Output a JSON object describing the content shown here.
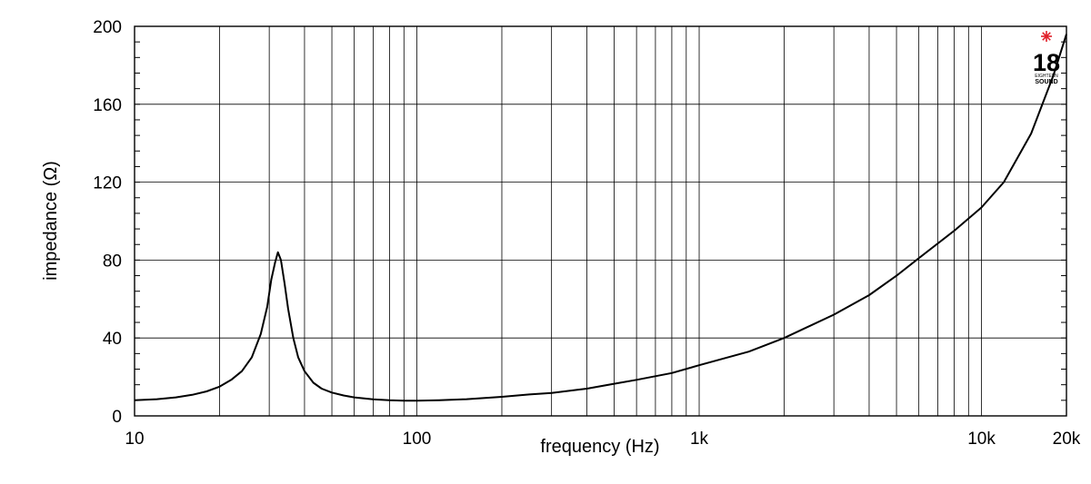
{
  "chart_data": {
    "type": "line",
    "title": "",
    "xlabel": "frequency (Hz)",
    "ylabel": "impedance (Ω)",
    "x_scale": "log",
    "xlim": [
      10,
      20000
    ],
    "ylim": [
      0,
      200
    ],
    "grid": true,
    "x_ticks": [
      {
        "value": 10,
        "label": "10"
      },
      {
        "value": 100,
        "label": "100"
      },
      {
        "value": 1000,
        "label": "1k"
      },
      {
        "value": 10000,
        "label": "10k"
      },
      {
        "value": 20000,
        "label": "20k"
      }
    ],
    "y_ticks": [
      {
        "value": 0,
        "label": "0"
      },
      {
        "value": 40,
        "label": "40"
      },
      {
        "value": 80,
        "label": "80"
      },
      {
        "value": 120,
        "label": "120"
      },
      {
        "value": 160,
        "label": "160"
      },
      {
        "value": 200,
        "label": "200"
      }
    ],
    "series": [
      {
        "color": "#000000",
        "points": [
          [
            10,
            8
          ],
          [
            12,
            8.6
          ],
          [
            14,
            9.5
          ],
          [
            16,
            10.8
          ],
          [
            18,
            12.6
          ],
          [
            20,
            15
          ],
          [
            22,
            18.5
          ],
          [
            24,
            23
          ],
          [
            26,
            30
          ],
          [
            28,
            42
          ],
          [
            29.5,
            56
          ],
          [
            30.5,
            70
          ],
          [
            31.5,
            79
          ],
          [
            32.2,
            84
          ],
          [
            33,
            80
          ],
          [
            34,
            68
          ],
          [
            35,
            55
          ],
          [
            36.5,
            40
          ],
          [
            38,
            30
          ],
          [
            40,
            23
          ],
          [
            43,
            17
          ],
          [
            46,
            14
          ],
          [
            50,
            12
          ],
          [
            55,
            10.5
          ],
          [
            60,
            9.5
          ],
          [
            70,
            8.5
          ],
          [
            80,
            8
          ],
          [
            90,
            7.8
          ],
          [
            100,
            7.8
          ],
          [
            120,
            8
          ],
          [
            150,
            8.6
          ],
          [
            200,
            9.8
          ],
          [
            250,
            11
          ],
          [
            300,
            11.8
          ],
          [
            400,
            14
          ],
          [
            500,
            16.5
          ],
          [
            600,
            18.5
          ],
          [
            800,
            22
          ],
          [
            1000,
            26
          ],
          [
            1500,
            33
          ],
          [
            2000,
            40
          ],
          [
            3000,
            52
          ],
          [
            4000,
            62
          ],
          [
            5000,
            72
          ],
          [
            6000,
            81
          ],
          [
            8000,
            95
          ],
          [
            10000,
            107
          ],
          [
            12000,
            120
          ],
          [
            15000,
            145
          ],
          [
            18000,
            175
          ],
          [
            20000,
            196
          ]
        ]
      }
    ]
  },
  "logo": {
    "number": "18",
    "top_text": "EIGHTEEN",
    "bottom_text": "SOUND",
    "star_color": "#e0202a"
  }
}
